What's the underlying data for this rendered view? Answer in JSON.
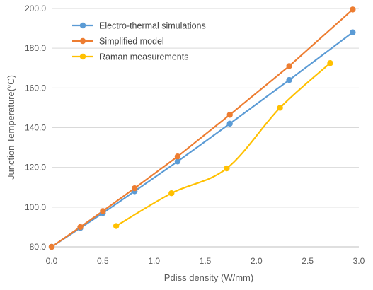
{
  "chart_data": {
    "type": "line",
    "title": "",
    "xlabel": "Pdiss density (W/mm)",
    "ylabel": "Junction Temperature(°C)",
    "xlim": [
      0.0,
      3.0
    ],
    "ylim": [
      80.0,
      200.0
    ],
    "x_ticks": [
      "0.0",
      "0.5",
      "1.0",
      "1.5",
      "2.0",
      "2.5",
      "3.0"
    ],
    "y_ticks": [
      "80.0",
      "100.0",
      "120.0",
      "140.0",
      "160.0",
      "180.0",
      "200.0"
    ],
    "grid": "horizontal",
    "legend_position": "top-left",
    "series": [
      {
        "name": "Electro-thermal simulations",
        "color": "#5B9BD5",
        "smooth": false,
        "x": [
          0.0,
          0.28,
          0.5,
          0.81,
          1.23,
          1.74,
          2.32,
          2.94
        ],
        "y": [
          80.0,
          89.5,
          97.0,
          108.0,
          123.0,
          142.0,
          164.0,
          188.0
        ]
      },
      {
        "name": "Simplified model",
        "color": "#ED7D31",
        "smooth": false,
        "x": [
          0.0,
          0.28,
          0.5,
          0.81,
          1.23,
          1.74,
          2.32,
          2.94
        ],
        "y": [
          80.0,
          90.0,
          98.0,
          109.5,
          125.5,
          146.5,
          171.0,
          199.5
        ]
      },
      {
        "name": "Raman measurements",
        "color": "#FFC000",
        "smooth": true,
        "x": [
          0.63,
          1.17,
          1.71,
          2.23,
          2.72
        ],
        "y": [
          90.5,
          107.0,
          119.5,
          150.0,
          172.5
        ]
      }
    ]
  }
}
